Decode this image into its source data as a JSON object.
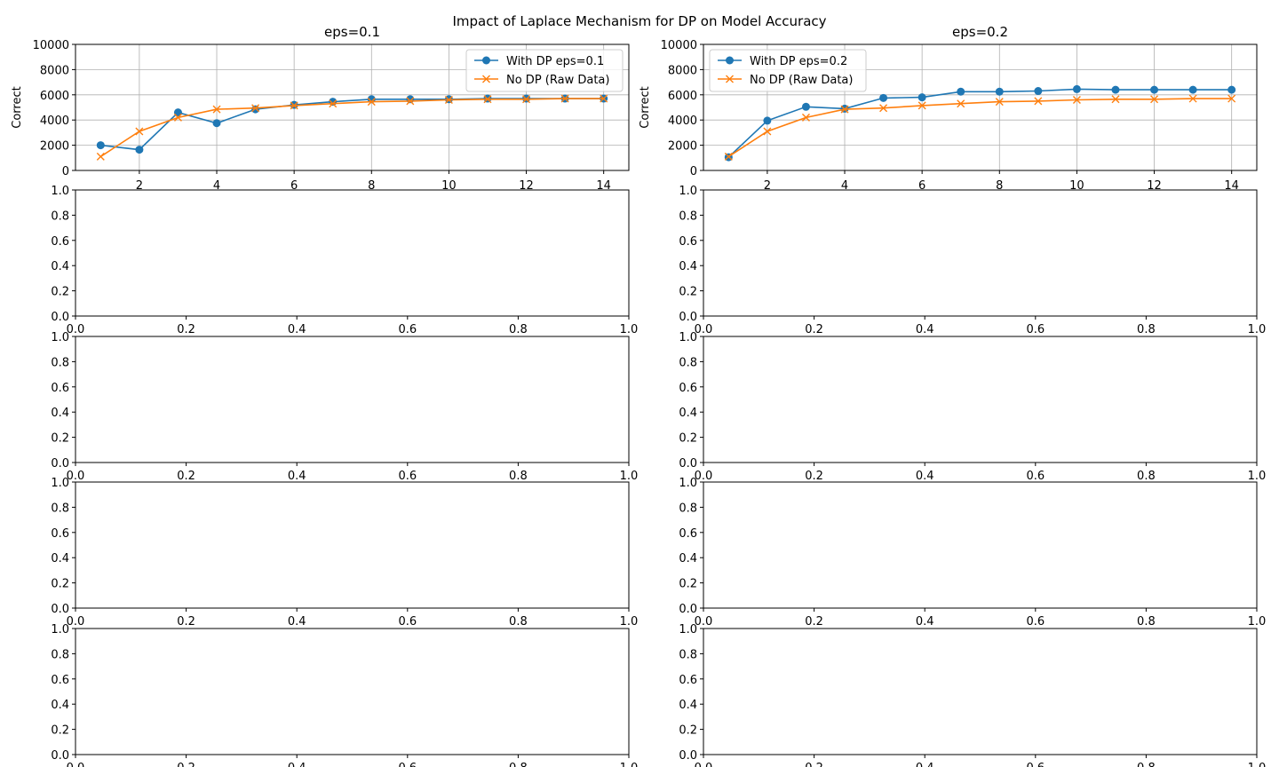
{
  "figure": {
    "title": "Impact of Laplace Mechanism for DP on Model Accuracy",
    "colors": {
      "series1": "#1f77b4",
      "series2": "#ff7f0e",
      "grid": "#b0b0b0"
    }
  },
  "chart_data": [
    {
      "type": "line",
      "title": "eps=0.1",
      "xlabel": "",
      "ylabel": "Correct",
      "grid": true,
      "legend": "top-right",
      "x": [
        1,
        2,
        3,
        4,
        5,
        6,
        7,
        8,
        9,
        10,
        11,
        12,
        13,
        14
      ],
      "xticks": [
        2,
        4,
        6,
        8,
        10,
        12,
        14
      ],
      "xlim": [
        0.35,
        14.65
      ],
      "ylim": [
        0,
        10000
      ],
      "yticks": [
        0,
        2000,
        4000,
        6000,
        8000,
        10000
      ],
      "series": [
        {
          "name": "With DP eps=0.1",
          "marker": "circle",
          "color": "#1f77b4",
          "values": [
            2000,
            1650,
            4600,
            3750,
            4850,
            5200,
            5450,
            5650,
            5650,
            5650,
            5700,
            5700,
            5700,
            5700
          ]
        },
        {
          "name": "No DP (Raw Data)",
          "marker": "x",
          "color": "#ff7f0e",
          "values": [
            1100,
            3100,
            4200,
            4850,
            4950,
            5150,
            5300,
            5450,
            5500,
            5600,
            5650,
            5650,
            5700,
            5700
          ]
        }
      ]
    },
    {
      "type": "line",
      "title": "eps=0.2",
      "xlabel": "",
      "ylabel": "Correct",
      "grid": true,
      "legend": "top-left",
      "x": [
        1,
        2,
        3,
        4,
        5,
        6,
        7,
        8,
        9,
        10,
        11,
        12,
        13,
        14
      ],
      "xticks": [
        2,
        4,
        6,
        8,
        10,
        12,
        14
      ],
      "xlim": [
        0.35,
        14.65
      ],
      "ylim": [
        0,
        10000
      ],
      "yticks": [
        0,
        2000,
        4000,
        6000,
        8000,
        10000
      ],
      "series": [
        {
          "name": "With DP eps=0.2",
          "marker": "circle",
          "color": "#1f77b4",
          "values": [
            1050,
            3950,
            5050,
            4900,
            5750,
            5800,
            6250,
            6250,
            6300,
            6450,
            6400,
            6400,
            6400,
            6400
          ]
        },
        {
          "name": "No DP (Raw Data)",
          "marker": "x",
          "color": "#ff7f0e",
          "values": [
            1100,
            3100,
            4200,
            4850,
            4950,
            5150,
            5300,
            5450,
            5500,
            5600,
            5650,
            5650,
            5700,
            5700
          ]
        }
      ]
    },
    {
      "type": "line",
      "empty": true,
      "xlim": [
        0,
        1
      ],
      "ylim": [
        0,
        1
      ],
      "xticks": [
        "0.0",
        "0.2",
        "0.4",
        "0.6",
        "0.8",
        "1.0"
      ],
      "yticks": [
        "0.0",
        "0.2",
        "0.4",
        "0.6",
        "0.8",
        "1.0"
      ]
    },
    {
      "type": "line",
      "empty": true,
      "xlim": [
        0,
        1
      ],
      "ylim": [
        0,
        1
      ],
      "xticks": [
        "0.0",
        "0.2",
        "0.4",
        "0.6",
        "0.8",
        "1.0"
      ],
      "yticks": [
        "0.0",
        "0.2",
        "0.4",
        "0.6",
        "0.8",
        "1.0"
      ]
    },
    {
      "type": "line",
      "empty": true,
      "xlim": [
        0,
        1
      ],
      "ylim": [
        0,
        1
      ],
      "xticks": [
        "0.0",
        "0.2",
        "0.4",
        "0.6",
        "0.8",
        "1.0"
      ],
      "yticks": [
        "0.0",
        "0.2",
        "0.4",
        "0.6",
        "0.8",
        "1.0"
      ]
    },
    {
      "type": "line",
      "empty": true,
      "xlim": [
        0,
        1
      ],
      "ylim": [
        0,
        1
      ],
      "xticks": [
        "0.0",
        "0.2",
        "0.4",
        "0.6",
        "0.8",
        "1.0"
      ],
      "yticks": [
        "0.0",
        "0.2",
        "0.4",
        "0.6",
        "0.8",
        "1.0"
      ]
    },
    {
      "type": "line",
      "empty": true,
      "xlim": [
        0,
        1
      ],
      "ylim": [
        0,
        1
      ],
      "xticks": [
        "0.0",
        "0.2",
        "0.4",
        "0.6",
        "0.8",
        "1.0"
      ],
      "yticks": [
        "0.0",
        "0.2",
        "0.4",
        "0.6",
        "0.8",
        "1.0"
      ]
    },
    {
      "type": "line",
      "empty": true,
      "xlim": [
        0,
        1
      ],
      "ylim": [
        0,
        1
      ],
      "xticks": [
        "0.0",
        "0.2",
        "0.4",
        "0.6",
        "0.8",
        "1.0"
      ],
      "yticks": [
        "0.0",
        "0.2",
        "0.4",
        "0.6",
        "0.8",
        "1.0"
      ]
    },
    {
      "type": "line",
      "empty": true,
      "xlim": [
        0,
        1
      ],
      "ylim": [
        0,
        1
      ],
      "xticks": [
        "0.0",
        "0.2",
        "0.4",
        "0.6",
        "0.8",
        "1.0"
      ],
      "yticks": [
        "0.0",
        "0.2",
        "0.4",
        "0.6",
        "0.8",
        "1.0"
      ]
    },
    {
      "type": "line",
      "empty": true,
      "xlim": [
        0,
        1
      ],
      "ylim": [
        0,
        1
      ],
      "xticks": [
        "0.0",
        "0.2",
        "0.4",
        "0.6",
        "0.8",
        "1.0"
      ],
      "yticks": [
        "0.0",
        "0.2",
        "0.4",
        "0.6",
        "0.8",
        "1.0"
      ]
    }
  ]
}
